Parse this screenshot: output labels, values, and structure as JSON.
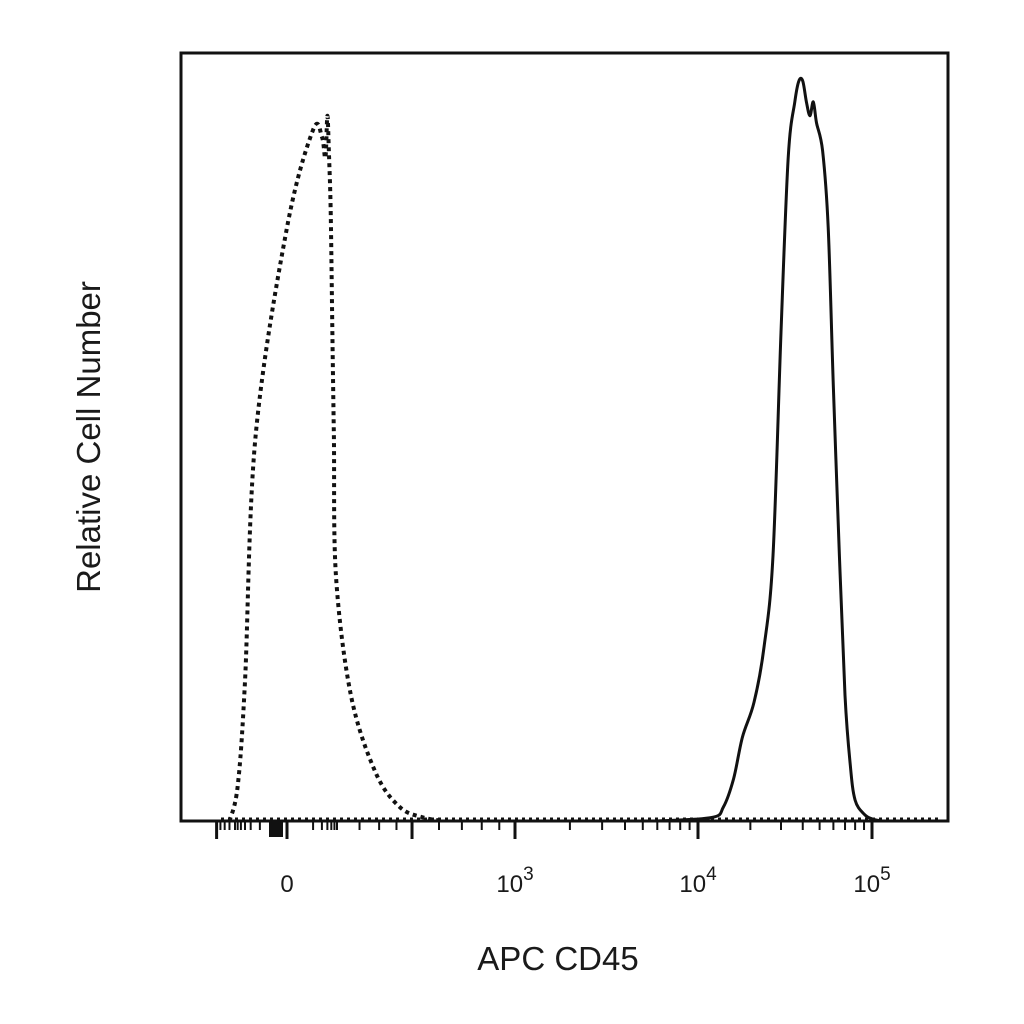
{
  "chart_data": {
    "type": "area",
    "xlabel": "APC CD45",
    "ylabel": "Relative Cell Number",
    "x_scale": "biexponential",
    "xlim": [
      -600,
      180000
    ],
    "ylim": [
      0,
      1.1
    ],
    "x_ticks": [
      {
        "label": "0",
        "value": 0
      },
      {
        "base": "10",
        "exp": "3",
        "value": 1000
      },
      {
        "base": "10",
        "exp": "4",
        "value": 10000
      },
      {
        "base": "10",
        "exp": "5",
        "value": 100000
      }
    ],
    "grid": false,
    "legend": "none",
    "series": [
      {
        "line_style": "dotted",
        "x": [
          -350,
          -250,
          -150,
          -70,
          0,
          50,
          100,
          130,
          150,
          170,
          190,
          210,
          240,
          280,
          330,
          390,
          460,
          540,
          620
        ],
        "y": [
          0,
          0.05,
          0.2,
          0.55,
          0.85,
          0.99,
          0.98,
          0.95,
          1.01,
          0.95,
          0.88,
          0.74,
          0.55,
          0.35,
          0.18,
          0.07,
          0.02,
          0.005,
          0
        ]
      },
      {
        "line_style": "solid",
        "x": [
          6000,
          12000,
          14000,
          16000,
          18000,
          21000,
          24000,
          27000,
          30000,
          33000,
          36000,
          38000,
          40000,
          42000,
          44000,
          46000,
          48000,
          52000,
          56000,
          60000,
          65000,
          70000,
          75000,
          80000,
          90000,
          100000,
          110000
        ],
        "y": [
          0,
          0.005,
          0.02,
          0.06,
          0.12,
          0.17,
          0.25,
          0.38,
          0.7,
          0.95,
          1.03,
          1.06,
          1.06,
          1.03,
          1.01,
          1.03,
          1.0,
          0.96,
          0.85,
          0.62,
          0.38,
          0.18,
          0.08,
          0.03,
          0.01,
          0.003,
          0
        ]
      }
    ]
  }
}
